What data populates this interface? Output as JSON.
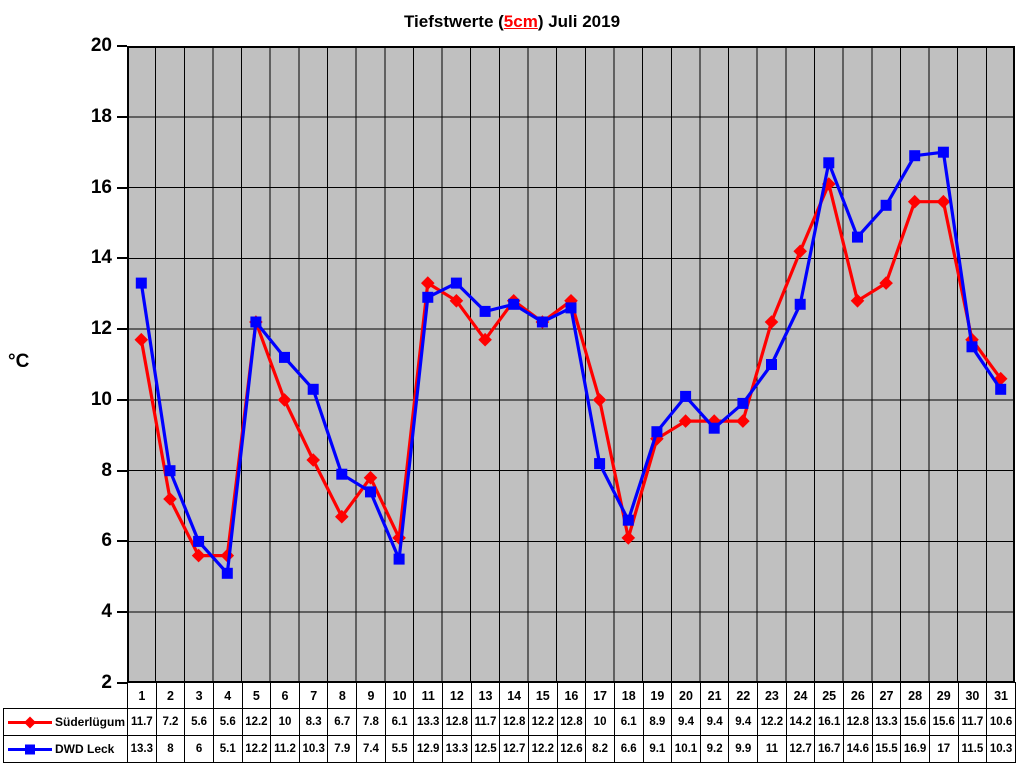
{
  "title": {
    "prefix": "Tiefstwerte (",
    "highlight": "5cm",
    "suffix": ") Juli 2019"
  },
  "y_axis_label": "°C",
  "colors": {
    "series_red": "#ff0000",
    "series_blue": "#0000ff",
    "plot_background": "#c0c0c0",
    "gridline": "#000000",
    "text": "#000000",
    "table_background": "#ffffff"
  },
  "chart_data": {
    "type": "line",
    "title": "Tiefstwerte (5cm) Juli 2019",
    "xlabel": "",
    "ylabel": "°C",
    "ylim": [
      2,
      20
    ],
    "yticks": [
      20,
      18,
      16,
      14,
      12,
      10,
      8,
      6,
      4,
      2
    ],
    "grid": true,
    "legend_position": "table-rows-bottom-left",
    "x": [
      1,
      2,
      3,
      4,
      5,
      6,
      7,
      8,
      9,
      10,
      11,
      12,
      13,
      14,
      15,
      16,
      17,
      18,
      19,
      20,
      21,
      22,
      23,
      24,
      25,
      26,
      27,
      28,
      29,
      30,
      31
    ],
    "series": [
      {
        "name": "Süderlügum",
        "color": "#ff0000",
        "marker": "diamond",
        "values": [
          11.7,
          7.2,
          5.6,
          5.6,
          12.2,
          10,
          8.3,
          6.7,
          7.8,
          6.1,
          13.3,
          12.8,
          11.7,
          12.8,
          12.2,
          12.8,
          10,
          6.1,
          8.9,
          9.4,
          9.4,
          9.4,
          12.2,
          14.2,
          16.1,
          12.8,
          13.3,
          15.6,
          15.6,
          11.7,
          10.6
        ]
      },
      {
        "name": "DWD Leck",
        "color": "#0000ff",
        "marker": "square",
        "values": [
          13.3,
          8,
          6,
          5.1,
          12.2,
          11.2,
          10.3,
          7.9,
          7.4,
          5.5,
          12.9,
          13.3,
          12.5,
          12.7,
          12.2,
          12.6,
          8.2,
          6.6,
          9.1,
          10.1,
          9.2,
          9.9,
          11,
          12.7,
          16.7,
          14.6,
          15.5,
          16.9,
          17,
          11.5,
          10.3
        ]
      }
    ]
  }
}
